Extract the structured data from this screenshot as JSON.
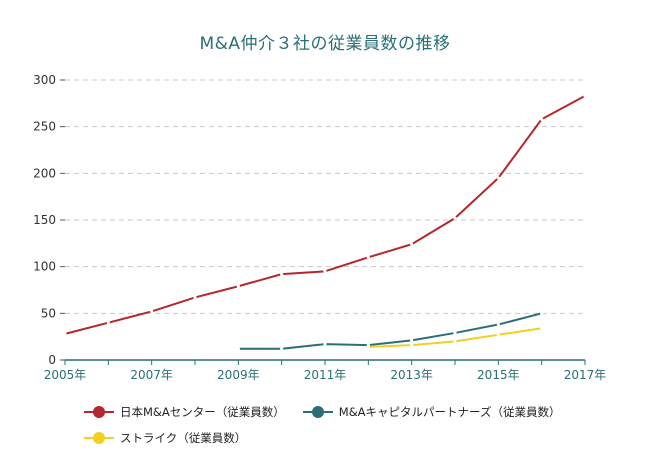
{
  "chart_data": {
    "type": "line",
    "title": "M&A仲介３社の従業員数の推移",
    "xlabel": "",
    "ylabel": "",
    "x": [
      2005,
      2006,
      2007,
      2008,
      2009,
      2010,
      2011,
      2012,
      2013,
      2014,
      2015,
      2016,
      2017
    ],
    "x_tick_labels": [
      "2005年",
      "2007年",
      "2009年",
      "2011年",
      "2013年",
      "2015年",
      "2017年"
    ],
    "x_tick_values": [
      2005,
      2007,
      2009,
      2011,
      2013,
      2015,
      2017
    ],
    "ylim": [
      0,
      300
    ],
    "y_ticks": [
      0,
      50,
      100,
      150,
      200,
      250,
      300
    ],
    "grid": true,
    "legend_position": "bottom-left",
    "series": [
      {
        "name": "日本M&Aセンター（従業員数）",
        "color": "#b5272d",
        "points": [
          [
            2005,
            28
          ],
          [
            2006,
            40
          ],
          [
            2007,
            52
          ],
          [
            2008,
            67
          ],
          [
            2009,
            79
          ],
          [
            2010,
            92
          ],
          [
            2011,
            95
          ],
          [
            2012,
            110
          ],
          [
            2013,
            124
          ],
          [
            2014,
            152
          ],
          [
            2015,
            195
          ],
          [
            2016,
            258
          ],
          [
            2017,
            283
          ]
        ]
      },
      {
        "name": "M&Aキャピタルパートナーズ（従業員数）",
        "color": "#2a6f77",
        "points": [
          [
            2009,
            12
          ],
          [
            2010,
            12
          ],
          [
            2011,
            17
          ],
          [
            2012,
            16
          ],
          [
            2013,
            21
          ],
          [
            2014,
            29
          ],
          [
            2015,
            38
          ],
          [
            2016,
            50
          ]
        ]
      },
      {
        "name": "ストライク（従業員数）",
        "color": "#f2d021",
        "points": [
          [
            2012,
            14
          ],
          [
            2013,
            16
          ],
          [
            2014,
            20
          ],
          [
            2015,
            27
          ],
          [
            2016,
            34
          ]
        ]
      }
    ]
  }
}
